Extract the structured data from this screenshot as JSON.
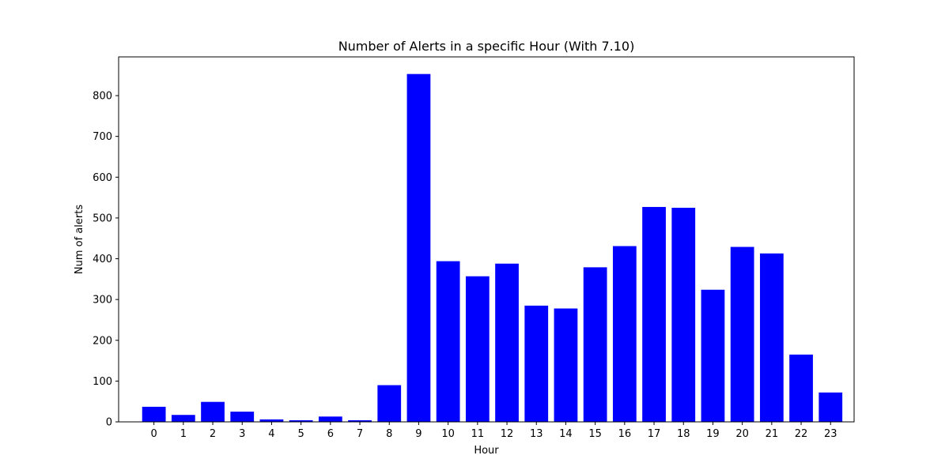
{
  "chart_data": {
    "type": "bar",
    "title": "Number of Alerts in a specific Hour (With 7.10)",
    "xlabel": "Hour",
    "ylabel": "Num of alerts",
    "categories": [
      "0",
      "1",
      "2",
      "3",
      "4",
      "5",
      "6",
      "7",
      "8",
      "9",
      "10",
      "11",
      "12",
      "13",
      "14",
      "15",
      "16",
      "17",
      "18",
      "19",
      "20",
      "21",
      "22",
      "23"
    ],
    "values": [
      37,
      17,
      49,
      25,
      6,
      4,
      13,
      4,
      90,
      853,
      394,
      357,
      388,
      285,
      278,
      379,
      431,
      527,
      525,
      324,
      429,
      413,
      165,
      72
    ],
    "yticks": [
      0,
      100,
      200,
      300,
      400,
      500,
      600,
      700,
      800
    ],
    "ylim": [
      0,
      895
    ],
    "bar_color": "#0000ff",
    "grid": false
  }
}
